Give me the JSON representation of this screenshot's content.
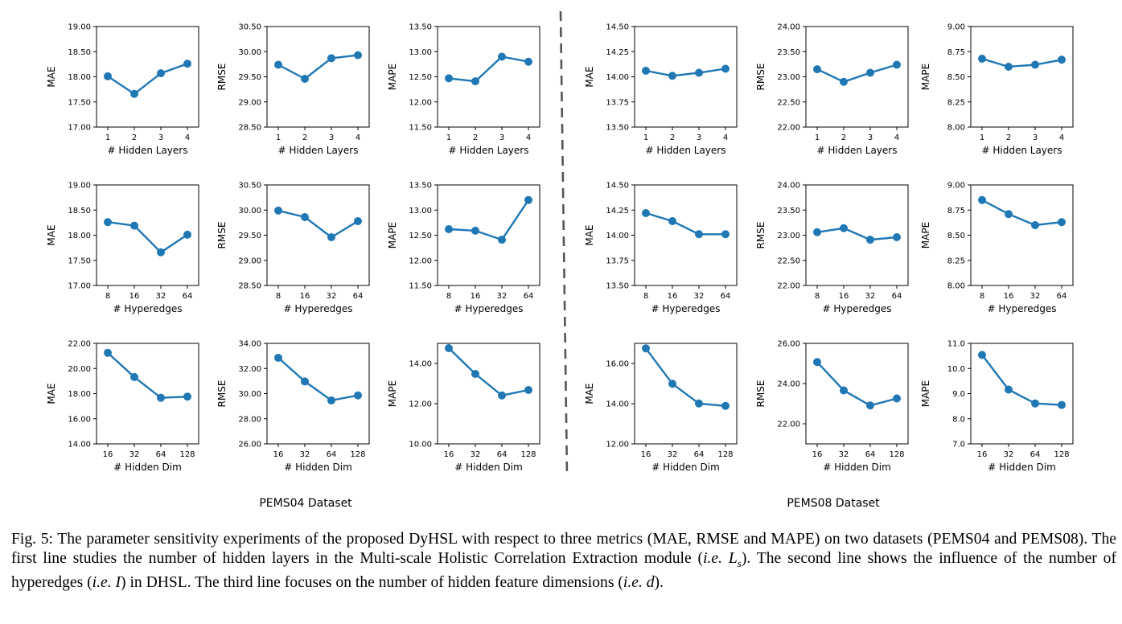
{
  "series_color": "#1f77b4",
  "datasets": [
    {
      "name": "PEMS04 Dataset"
    },
    {
      "name": "PEMS08 Dataset"
    }
  ],
  "chart_data": [
    {
      "id": "p04-layers-mae",
      "type": "line",
      "dataset": "PEMS04",
      "row": 1,
      "col": 1,
      "xlabel": "# Hidden Layers",
      "ylabel": "MAE",
      "categories": [
        "1",
        "2",
        "3",
        "4"
      ],
      "values": [
        18.01,
        17.66,
        18.07,
        18.26
      ],
      "ylim": [
        17.0,
        19.0
      ],
      "yticks": [
        "17.00",
        "17.50",
        "18.00",
        "18.50",
        "19.00"
      ]
    },
    {
      "id": "p04-layers-rmse",
      "type": "line",
      "dataset": "PEMS04",
      "row": 1,
      "col": 2,
      "xlabel": "# Hidden Layers",
      "ylabel": "RMSE",
      "categories": [
        "1",
        "2",
        "3",
        "4"
      ],
      "values": [
        29.74,
        29.46,
        29.87,
        29.93
      ],
      "ylim": [
        28.5,
        30.5
      ],
      "yticks": [
        "28.50",
        "29.00",
        "29.50",
        "30.00",
        "30.50"
      ]
    },
    {
      "id": "p04-layers-mape",
      "type": "line",
      "dataset": "PEMS04",
      "row": 1,
      "col": 3,
      "xlabel": "# Hidden Layers",
      "ylabel": "MAPE",
      "categories": [
        "1",
        "2",
        "3",
        "4"
      ],
      "values": [
        12.47,
        12.41,
        12.9,
        12.8
      ],
      "ylim": [
        11.5,
        13.5
      ],
      "yticks": [
        "11.50",
        "12.00",
        "12.50",
        "13.00",
        "13.50"
      ]
    },
    {
      "id": "p08-layers-mae",
      "type": "line",
      "dataset": "PEMS08",
      "row": 1,
      "col": 4,
      "xlabel": "# Hidden Layers",
      "ylabel": "MAE",
      "categories": [
        "1",
        "2",
        "3",
        "4"
      ],
      "values": [
        14.06,
        14.01,
        14.04,
        14.08
      ],
      "ylim": [
        13.5,
        14.5
      ],
      "yticks": [
        "13.50",
        "13.75",
        "14.00",
        "14.25",
        "14.50"
      ]
    },
    {
      "id": "p08-layers-rmse",
      "type": "line",
      "dataset": "PEMS08",
      "row": 1,
      "col": 5,
      "xlabel": "# Hidden Layers",
      "ylabel": "RMSE",
      "categories": [
        "1",
        "2",
        "3",
        "4"
      ],
      "values": [
        23.15,
        22.9,
        23.08,
        23.24
      ],
      "ylim": [
        22.0,
        24.0
      ],
      "yticks": [
        "22.00",
        "22.50",
        "23.00",
        "23.50",
        "24.00"
      ]
    },
    {
      "id": "p08-layers-mape",
      "type": "line",
      "dataset": "PEMS08",
      "row": 1,
      "col": 6,
      "xlabel": "# Hidden Layers",
      "ylabel": "MAPE",
      "categories": [
        "1",
        "2",
        "3",
        "4"
      ],
      "values": [
        8.68,
        8.6,
        8.62,
        8.67
      ],
      "ylim": [
        8.0,
        9.0
      ],
      "yticks": [
        "8.00",
        "8.25",
        "8.50",
        "8.75",
        "9.00"
      ]
    },
    {
      "id": "p04-hyper-mae",
      "type": "line",
      "dataset": "PEMS04",
      "row": 2,
      "col": 1,
      "xlabel": "# Hyperedges",
      "ylabel": "MAE",
      "categories": [
        "8",
        "16",
        "32",
        "64"
      ],
      "values": [
        18.26,
        18.19,
        17.66,
        18.01
      ],
      "ylim": [
        17.0,
        19.0
      ],
      "yticks": [
        "17.00",
        "17.50",
        "18.00",
        "18.50",
        "19.00"
      ]
    },
    {
      "id": "p04-hyper-rmse",
      "type": "line",
      "dataset": "PEMS04",
      "row": 2,
      "col": 2,
      "xlabel": "# Hyperedges",
      "ylabel": "RMSE",
      "categories": [
        "8",
        "16",
        "32",
        "64"
      ],
      "values": [
        29.99,
        29.86,
        29.46,
        29.78
      ],
      "ylim": [
        28.5,
        30.5
      ],
      "yticks": [
        "28.50",
        "29.00",
        "29.50",
        "30.00",
        "30.50"
      ]
    },
    {
      "id": "p04-hyper-mape",
      "type": "line",
      "dataset": "PEMS04",
      "row": 2,
      "col": 3,
      "xlabel": "# Hyperedges",
      "ylabel": "MAPE",
      "categories": [
        "8",
        "16",
        "32",
        "64"
      ],
      "values": [
        12.62,
        12.59,
        12.41,
        13.2
      ],
      "ylim": [
        11.5,
        13.5
      ],
      "yticks": [
        "11.50",
        "12.00",
        "12.50",
        "13.00",
        "13.50"
      ]
    },
    {
      "id": "p08-hyper-mae",
      "type": "line",
      "dataset": "PEMS08",
      "row": 2,
      "col": 4,
      "xlabel": "# Hyperedges",
      "ylabel": "MAE",
      "categories": [
        "8",
        "16",
        "32",
        "64"
      ],
      "values": [
        14.22,
        14.14,
        14.01,
        14.01
      ],
      "ylim": [
        13.5,
        14.5
      ],
      "yticks": [
        "13.50",
        "13.75",
        "14.00",
        "14.25",
        "14.50"
      ]
    },
    {
      "id": "p08-hyper-rmse",
      "type": "line",
      "dataset": "PEMS08",
      "row": 2,
      "col": 5,
      "xlabel": "# Hyperedges",
      "ylabel": "RMSE",
      "categories": [
        "8",
        "16",
        "32",
        "64"
      ],
      "values": [
        23.06,
        23.14,
        22.91,
        22.96
      ],
      "ylim": [
        22.0,
        24.0
      ],
      "yticks": [
        "22.00",
        "22.50",
        "23.00",
        "23.50",
        "24.00"
      ]
    },
    {
      "id": "p08-hyper-mape",
      "type": "line",
      "dataset": "PEMS08",
      "row": 2,
      "col": 6,
      "xlabel": "# Hyperedges",
      "ylabel": "MAPE",
      "categories": [
        "8",
        "16",
        "32",
        "64"
      ],
      "values": [
        8.85,
        8.71,
        8.6,
        8.63
      ],
      "ylim": [
        8.0,
        9.0
      ],
      "yticks": [
        "8.00",
        "8.25",
        "8.50",
        "8.75",
        "9.00"
      ]
    },
    {
      "id": "p04-dim-mae",
      "type": "line",
      "dataset": "PEMS04",
      "row": 3,
      "col": 1,
      "xlabel": "# Hidden Dim",
      "ylabel": "MAE",
      "categories": [
        "16",
        "32",
        "64",
        "128"
      ],
      "values": [
        21.25,
        19.32,
        17.67,
        17.76
      ],
      "ylim": [
        14.0,
        22.0
      ],
      "yticks": [
        "14.00",
        "16.00",
        "18.00",
        "20.00",
        "22.00"
      ]
    },
    {
      "id": "p04-dim-rmse",
      "type": "line",
      "dataset": "PEMS04",
      "row": 3,
      "col": 2,
      "xlabel": "# Hidden Dim",
      "ylabel": "RMSE",
      "categories": [
        "16",
        "32",
        "64",
        "128"
      ],
      "values": [
        32.85,
        30.97,
        29.46,
        29.86
      ],
      "ylim": [
        26.0,
        34.0
      ],
      "yticks": [
        "26.00",
        "28.00",
        "30.00",
        "32.00",
        "34.00"
      ]
    },
    {
      "id": "p04-dim-mape",
      "type": "line",
      "dataset": "PEMS04",
      "row": 3,
      "col": 3,
      "xlabel": "# Hidden Dim",
      "ylabel": "MAPE",
      "categories": [
        "16",
        "32",
        "64",
        "128"
      ],
      "values": [
        14.76,
        13.48,
        12.41,
        12.68
      ],
      "ylim": [
        10.0,
        15.0
      ],
      "yticks": [
        "10.00",
        "12.00",
        "14.00"
      ]
    },
    {
      "id": "p08-dim-mae",
      "type": "line",
      "dataset": "PEMS08",
      "row": 3,
      "col": 4,
      "xlabel": "# Hidden Dim",
      "ylabel": "MAE",
      "categories": [
        "16",
        "32",
        "64",
        "128"
      ],
      "values": [
        16.75,
        14.99,
        14.01,
        13.89
      ],
      "ylim": [
        12.0,
        17.0
      ],
      "yticks": [
        "12.00",
        "14.00",
        "16.00"
      ]
    },
    {
      "id": "p08-dim-rmse",
      "type": "line",
      "dataset": "PEMS08",
      "row": 3,
      "col": 5,
      "xlabel": "# Hidden Dim",
      "ylabel": "RMSE",
      "categories": [
        "16",
        "32",
        "64",
        "128"
      ],
      "values": [
        25.07,
        23.66,
        22.91,
        23.26
      ],
      "ylim": [
        21.0,
        26.0
      ],
      "yticks": [
        "22.00",
        "24.00",
        "26.00"
      ]
    },
    {
      "id": "p08-dim-mape",
      "type": "line",
      "dataset": "PEMS08",
      "row": 3,
      "col": 6,
      "xlabel": "# Hidden Dim",
      "ylabel": "MAPE",
      "categories": [
        "16",
        "32",
        "64",
        "128"
      ],
      "values": [
        10.54,
        9.16,
        8.61,
        8.55
      ],
      "ylim": [
        7.0,
        11.0
      ],
      "yticks": [
        "7.0",
        "8.0",
        "9.0",
        "10.0",
        "11.0"
      ]
    }
  ],
  "caption": {
    "p1": "Fig. 5: The parameter sensitivity experiments of the proposed DyHSL with respect to three metrics (MAE, RMSE and MAPE) on two datasets (PEMS04 and PEMS08). The first line studies the number of hidden layers in the Multi-scale Holistic Correlation Extraction module (",
    "ie": "i.e.",
    "v1": "L",
    "v1_sub": "s",
    "p2": "). The second line shows the influence of the number of hyperedges (",
    "v2": "I",
    "p3": ") in DHSL. The third line focuses on the number of hidden feature dimensions (",
    "v3": "d",
    "p4": ")."
  }
}
